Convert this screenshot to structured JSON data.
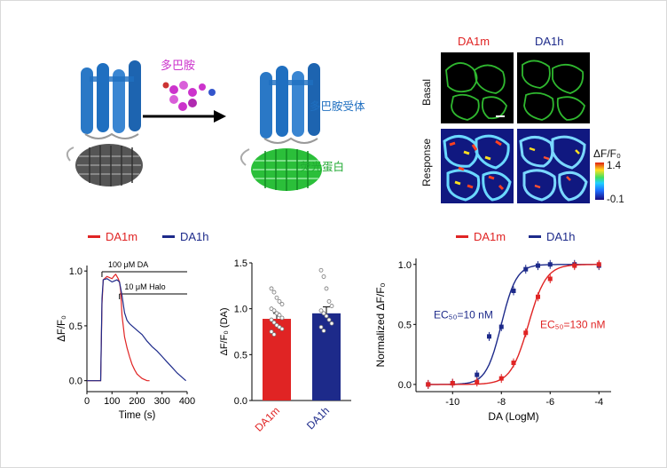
{
  "schematic": {
    "ligand_label": "多巴胺",
    "receptor_label": "多巴胺受体",
    "fluorescent_label": "荧光蛋白",
    "colors": {
      "ligand": "#cc33cc",
      "receptor": "#1f6fc0",
      "fluor": "#22aa33",
      "gray": "#555555"
    }
  },
  "imaging": {
    "columns": [
      "DA1m",
      "DA1h"
    ],
    "column_colors": [
      "#e02424",
      "#1d2a8a"
    ],
    "rows": [
      "Basal",
      "Response"
    ],
    "colorbar": {
      "title": "ΔF/F₀",
      "max_label": "1.4",
      "min_label": "-0.1"
    }
  },
  "legend_left": {
    "items": [
      {
        "label": "DA1m",
        "color": "#e02424"
      },
      {
        "label": "DA1h",
        "color": "#1d2a8a"
      }
    ]
  },
  "legend_right": {
    "items": [
      {
        "label": "DA1m",
        "color": "#e02424"
      },
      {
        "label": "DA1h",
        "color": "#1d2a8a"
      }
    ]
  },
  "chart_data": [
    {
      "type": "line",
      "xlabel": "Time (s)",
      "ylabel": "ΔF/F₀",
      "xlim": [
        0,
        400
      ],
      "ylim": [
        -0.1,
        1.05
      ],
      "xticks": [
        "0",
        "100",
        "200",
        "300",
        "400"
      ],
      "yticks": [
        "0.0",
        "0.5",
        "1.0"
      ],
      "annotations": [
        "100 μM DA",
        "10 μM Halo"
      ],
      "series": [
        {
          "name": "DA1m",
          "color": "#e02424",
          "x": [
            0,
            40,
            55,
            60,
            65,
            80,
            100,
            110,
            115,
            125,
            130,
            135,
            140,
            150,
            160,
            170,
            180,
            190,
            200,
            210,
            220,
            230,
            240,
            250
          ],
          "y": [
            0.0,
            0.0,
            0.0,
            0.7,
            0.92,
            0.95,
            0.93,
            0.96,
            0.97,
            0.93,
            0.9,
            0.82,
            0.6,
            0.4,
            0.3,
            0.22,
            0.15,
            0.1,
            0.06,
            0.04,
            0.02,
            0.01,
            0.0,
            0.0
          ]
        },
        {
          "name": "DA1h",
          "color": "#1d2a8a",
          "x": [
            0,
            40,
            55,
            60,
            65,
            80,
            100,
            120,
            130,
            140,
            150,
            160,
            170,
            180,
            200,
            220,
            240,
            260,
            280,
            300,
            320,
            340,
            360,
            380,
            395
          ],
          "y": [
            0.0,
            0.0,
            0.0,
            0.75,
            0.92,
            0.93,
            0.9,
            0.92,
            0.9,
            0.78,
            0.62,
            0.55,
            0.52,
            0.5,
            0.46,
            0.42,
            0.36,
            0.31,
            0.27,
            0.22,
            0.17,
            0.12,
            0.07,
            0.03,
            0.0
          ]
        }
      ]
    },
    {
      "type": "bar",
      "ylabel": "ΔF/F₀ (DA)",
      "categories": [
        "DA1m",
        "DA1h"
      ],
      "values": [
        0.89,
        0.95
      ],
      "errors": [
        0.06,
        0.07
      ],
      "colors": [
        "#e02424",
        "#1d2a8a"
      ],
      "ylim": [
        0,
        1.5
      ],
      "yticks": [
        "0.0",
        "0.5",
        "1.0",
        "1.5"
      ],
      "points": [
        [
          1.22,
          1.18,
          1.12,
          1.08,
          1.05,
          1.0,
          0.98,
          0.95,
          0.93,
          0.9,
          0.88,
          0.85,
          0.82,
          0.8,
          0.78,
          0.75,
          0.72
        ],
        [
          1.42,
          1.35,
          1.22,
          1.08,
          1.03,
          0.98,
          0.95,
          0.92,
          0.88,
          0.84,
          0.8,
          0.76
        ]
      ]
    },
    {
      "type": "scatter",
      "xlabel": "DA (LogM)",
      "ylabel": "Normalized ΔF/F₀",
      "xlim": [
        -11.5,
        -3.5
      ],
      "ylim": [
        -0.06,
        1.05
      ],
      "xticks": [
        "-10",
        "-8",
        "-6",
        "-4"
      ],
      "yticks": [
        "0.0",
        "0.5",
        "1.0"
      ],
      "annotations": [
        {
          "text": "EC₅₀=10 nM",
          "color": "#1d2a8a"
        },
        {
          "text": "EC₅₀=130 nM",
          "color": "#e02424"
        }
      ],
      "series": [
        {
          "name": "DA1h",
          "color": "#1d2a8a",
          "ec50_log": -8.0,
          "hill": 1.4,
          "x": [
            -11,
            -10,
            -9,
            -8.5,
            -8,
            -7.5,
            -7,
            -6.5,
            -6,
            -5,
            -4
          ],
          "y": [
            0.0,
            0.01,
            0.08,
            0.4,
            0.48,
            0.78,
            0.96,
            0.99,
            1.0,
            1.0,
            0.99
          ]
        },
        {
          "name": "DA1m",
          "color": "#e02424",
          "ec50_log": -6.89,
          "hill": 1.2,
          "x": [
            -11,
            -10,
            -9,
            -8,
            -7.5,
            -7,
            -6.5,
            -6,
            -5,
            -4
          ],
          "y": [
            0.0,
            0.01,
            0.02,
            0.05,
            0.18,
            0.43,
            0.73,
            0.88,
            0.99,
            1.0
          ]
        }
      ]
    }
  ]
}
